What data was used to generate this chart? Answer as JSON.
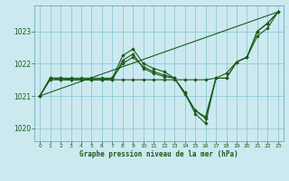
{
  "background_color": "#cce9f0",
  "grid_color": "#8fc8d8",
  "line_color": "#1a5c1a",
  "xlabel": "Graphe pression niveau de la mer (hPa)",
  "xlim": [
    -0.5,
    23.5
  ],
  "ylim": [
    1019.6,
    1023.8
  ],
  "yticks": [
    1020,
    1021,
    1022,
    1023
  ],
  "xticks": [
    0,
    1,
    2,
    3,
    4,
    5,
    6,
    7,
    8,
    9,
    10,
    11,
    12,
    13,
    14,
    15,
    16,
    17,
    18,
    19,
    20,
    21,
    22,
    23
  ],
  "series": [
    {
      "x": [
        0,
        23
      ],
      "y": [
        1021.0,
        1023.6
      ],
      "has_markers": false
    },
    {
      "x": [
        0,
        1,
        2,
        3,
        4,
        5,
        6,
        7,
        8,
        9,
        10,
        11,
        12,
        13,
        14,
        15,
        16,
        17,
        18,
        19,
        20,
        21,
        22,
        23
      ],
      "y": [
        1021.0,
        1021.55,
        1021.55,
        1021.55,
        1021.55,
        1021.55,
        1021.55,
        1021.55,
        1022.25,
        1022.45,
        1022.0,
        1021.85,
        1021.75,
        1021.55,
        1021.1,
        1020.45,
        1020.15,
        1021.55,
        1021.7,
        1022.05,
        1022.2,
        1023.0,
        1023.25,
        1023.6
      ],
      "has_markers": true
    },
    {
      "x": [
        0,
        1,
        2,
        3,
        4,
        5,
        6,
        7,
        8,
        9,
        10,
        11,
        12,
        13,
        14,
        15,
        16,
        17,
        18,
        19,
        20,
        21,
        22,
        23
      ],
      "y": [
        1021.0,
        1021.55,
        1021.5,
        1021.5,
        1021.5,
        1021.5,
        1021.5,
        1021.5,
        1022.1,
        1022.3,
        1021.85,
        1021.7,
        1021.6,
        1021.55,
        1021.1,
        1020.55,
        1020.3,
        1021.55,
        1021.55,
        1022.05,
        1022.2,
        1022.85,
        1023.1,
        1023.6
      ],
      "has_markers": true
    },
    {
      "x": [
        0,
        1,
        2,
        3,
        4,
        5,
        6,
        7,
        8,
        9,
        10,
        11,
        12,
        13,
        14,
        15,
        16,
        17
      ],
      "y": [
        1021.0,
        1021.55,
        1021.55,
        1021.5,
        1021.5,
        1021.5,
        1021.5,
        1021.5,
        1021.5,
        1021.5,
        1021.5,
        1021.5,
        1021.5,
        1021.5,
        1021.5,
        1021.5,
        1021.5,
        1021.55
      ],
      "has_markers": true
    },
    {
      "x": [
        0,
        1,
        2,
        3,
        4,
        5,
        6,
        7,
        8,
        9,
        10,
        11,
        12,
        13,
        14,
        15,
        16,
        17,
        18,
        19,
        20,
        21,
        22,
        23
      ],
      "y": [
        1021.0,
        1021.5,
        1021.5,
        1021.5,
        1021.5,
        1021.5,
        1021.5,
        1021.55,
        1022.0,
        1022.2,
        1021.9,
        1021.75,
        1021.65,
        1021.55,
        1021.05,
        1020.55,
        1020.35,
        1021.55,
        1021.55,
        1022.05,
        1022.2,
        1023.0,
        1023.25,
        1023.6
      ],
      "has_markers": true
    }
  ]
}
